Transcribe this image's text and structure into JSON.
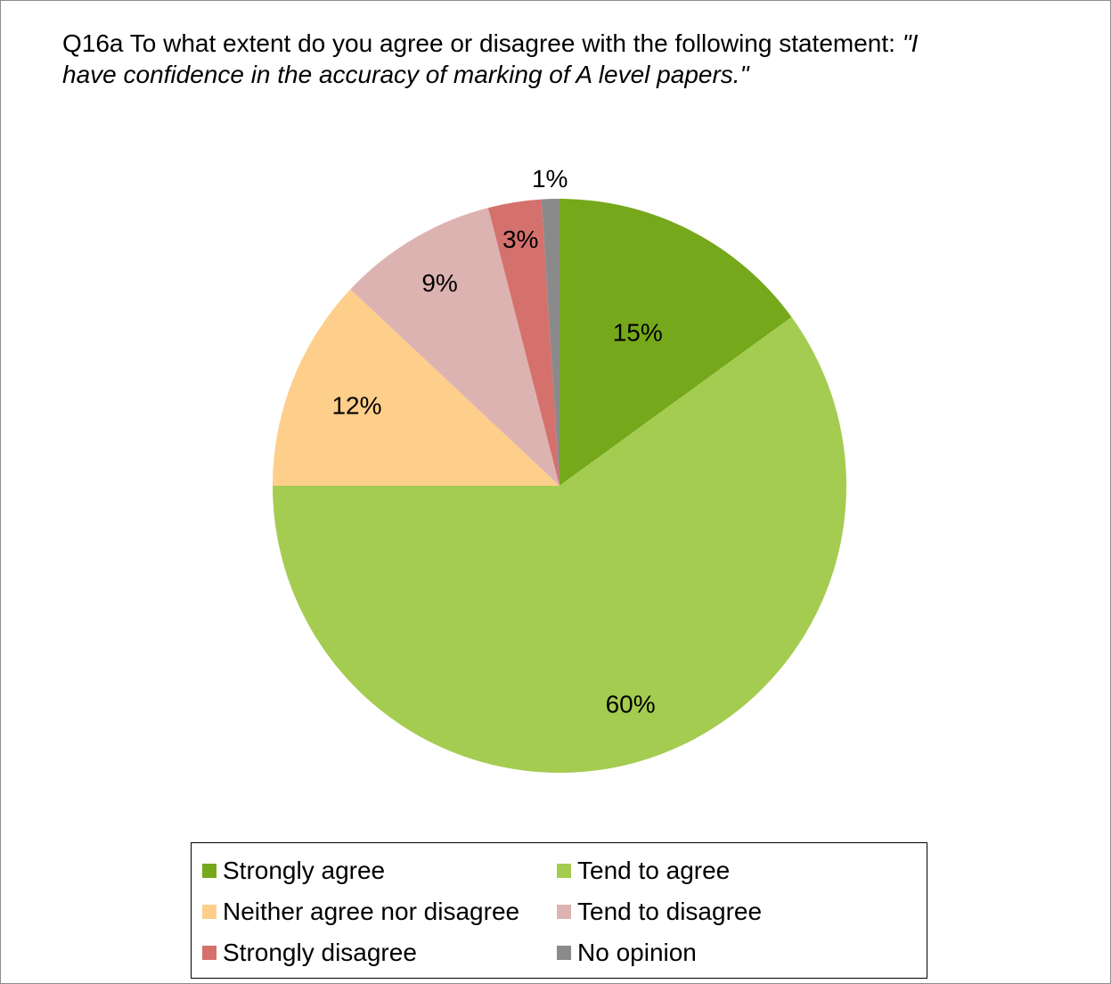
{
  "title": {
    "prefix": "Q16a To what extent do you agree or disagree with the following statement: ",
    "quote": "\"I have confidence in the accuracy of marking of A level papers.\""
  },
  "chart_data": {
    "type": "pie",
    "categories": [
      "Strongly agree",
      "Tend to agree",
      "Neither agree nor disagree",
      "Tend to disagree",
      "Strongly disagree",
      "No opinion"
    ],
    "values": [
      15,
      60,
      12,
      9,
      3,
      1
    ],
    "labels": [
      "15%",
      "60%",
      "12%",
      "9%",
      "3%",
      "1%"
    ],
    "colors": [
      "#76a81b",
      "#a4cc50",
      "#fece8b",
      "#ddb3b2",
      "#d4716d",
      "#8a8a8a"
    ],
    "start": "12 o'clock",
    "direction": "clockwise",
    "legend_position": "bottom"
  },
  "legend": {
    "items": [
      {
        "label": "Strongly agree",
        "color": "#76a81b"
      },
      {
        "label": "Tend to agree",
        "color": "#a4cc50"
      },
      {
        "label": "Neither agree nor disagree",
        "color": "#fece8b"
      },
      {
        "label": "Tend to disagree",
        "color": "#ddb3b2"
      },
      {
        "label": "Strongly disagree",
        "color": "#d4716d"
      },
      {
        "label": "No opinion",
        "color": "#8a8a8a"
      }
    ]
  }
}
